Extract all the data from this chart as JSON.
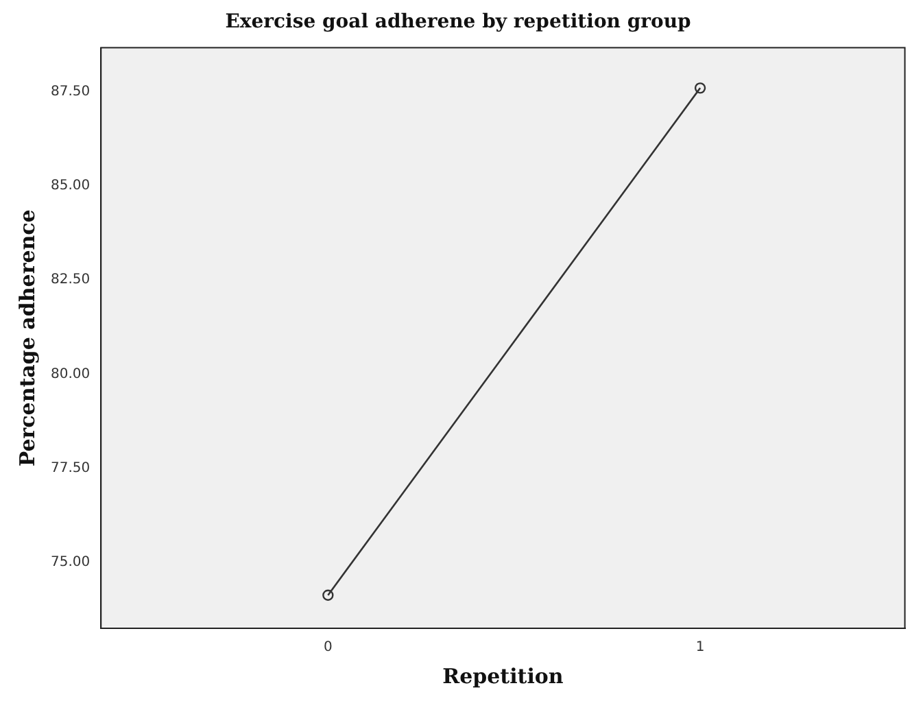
{
  "chart_data": {
    "type": "line",
    "title": "Exercise goal adherene by repetition group",
    "xlabel": "Repetition",
    "ylabel": "Percentage adherence",
    "x": [
      0,
      1
    ],
    "series": [
      {
        "color": "#333333",
        "values": [
          74.13,
          87.6
        ]
      }
    ],
    "xlim": [
      -0.61,
      1.55
    ],
    "xticks": [
      0,
      1
    ],
    "ylim": [
      73.25,
      88.67
    ],
    "yticks": [
      {
        "value": 75,
        "label": "75.00"
      },
      {
        "value": 77.5,
        "label": "77.50"
      },
      {
        "value": 80,
        "label": "80.00"
      },
      {
        "value": 82.5,
        "label": "82.50"
      },
      {
        "value": 85,
        "label": "85.00"
      },
      {
        "value": 87.5,
        "label": "87.50"
      }
    ],
    "grid": false,
    "legend": false,
    "marker": "circle",
    "line_style": "solid"
  }
}
